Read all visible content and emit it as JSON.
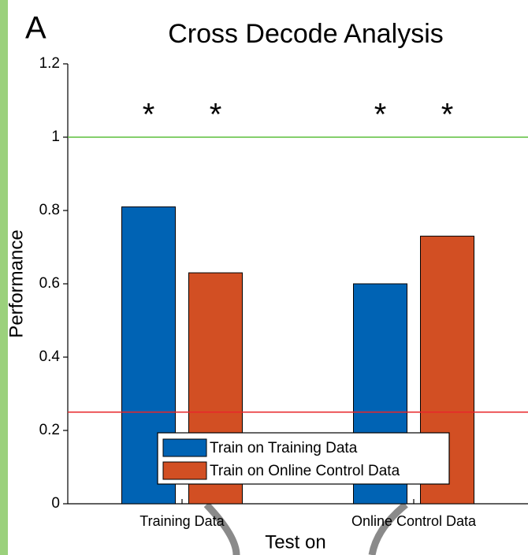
{
  "chart_data": {
    "type": "bar",
    "panel_label": "A",
    "title": "Cross Decode Analysis",
    "x_label": "Test on",
    "y_label": "Performance",
    "categories": [
      "Training Data",
      "Online Control Data"
    ],
    "series": [
      {
        "name": "Train on Training Data",
        "color": "#0063b4",
        "values": [
          0.81,
          0.6
        ]
      },
      {
        "name": "Train on Online Control Data",
        "color": "#d24f23",
        "values": [
          0.63,
          0.73
        ]
      }
    ],
    "ylim": [
      0,
      1.2
    ],
    "yticks": [
      0,
      0.2,
      0.4,
      0.6,
      0.8,
      1,
      1.2
    ],
    "reference_lines": [
      {
        "value": 1,
        "color": "#5cbf3c"
      },
      {
        "value": 0.25,
        "color": "#e8262a"
      }
    ],
    "annotations": [
      "*",
      "*",
      "*",
      "*"
    ]
  }
}
